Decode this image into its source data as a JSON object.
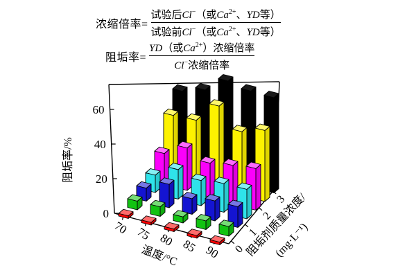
{
  "formulas": {
    "concentration_ratio": {
      "lhs": "浓缩倍率=",
      "numerator": "试验后<i>Cl</i><sup>−</sup>（或<i>Ca</i><sup>2+</sup>、<i>YD</i>等）",
      "denominator": "试验前<i>Cl</i><sup>−</sup>（或<i>Ca</i><sup>2+</sup>、<i>YD</i>等）"
    },
    "scale_inhibition_rate": {
      "lhs": "阻垢率=",
      "numerator": "<i>YD</i>（或<i>Ca</i><sup>2+</sup>）浓缩倍率",
      "denominator": "<i>Cl</i><sup>−</sup>浓缩倍率"
    }
  },
  "chart_data": {
    "type": "bar",
    "projection": "3d",
    "xlabel": "温度/°C",
    "ylabel": "阻垢率/%",
    "zlabel": "阻垢剂质量浓度/(mg·L⁻¹)",
    "zlabel_line1": "阻垢剂质量浓度/",
    "zlabel_line2": "(mg·L⁻¹)",
    "categories": [
      70,
      75,
      80,
      85,
      90
    ],
    "x_tick_labels": [
      "70",
      "75",
      "80",
      "85",
      "90"
    ],
    "y_ticks": [
      0,
      20,
      40,
      60
    ],
    "ylim": [
      0,
      74
    ],
    "z_tick_labels": [
      "0",
      "1",
      "2",
      "3"
    ],
    "z_concentrations": [
      0,
      0.5,
      1,
      1.5,
      2,
      2.5,
      3
    ],
    "grid": false,
    "legend": false,
    "series": [
      {
        "name": "0 mg·L⁻¹",
        "concentration": 0,
        "color": "#ff0000",
        "values": [
          1.5,
          1.5,
          1.5,
          1.5,
          1.5
        ]
      },
      {
        "name": "0.5 mg·L⁻¹",
        "concentration": 0.5,
        "color": "#12c312",
        "values": [
          5,
          5.5,
          3.5,
          5,
          5.5
        ]
      },
      {
        "name": "1 mg·L⁻¹",
        "concentration": 1,
        "color": "#1414d2",
        "values": [
          7.5,
          13.5,
          9,
          11.5,
          12
        ]
      },
      {
        "name": "1.5 mg·L⁻¹",
        "concentration": 1.5,
        "color": "#2fe3ea",
        "values": [
          10,
          17,
          14.5,
          16.5,
          17
        ]
      },
      {
        "name": "2 mg·L⁻¹",
        "concentration": 2,
        "color": "#fb00fb",
        "values": [
          17.5,
          24.5,
          19.5,
          22,
          24
        ]
      },
      {
        "name": "2.5 mg·L⁻¹",
        "concentration": 2.5,
        "color": "#fdf200",
        "values": [
          34.5,
          35.5,
          47.5,
          36.5,
          41
        ]
      },
      {
        "name": "3 mg·L⁻¹",
        "concentration": 3,
        "color": "#000000",
        "values": [
          43.5,
          48,
          57,
          55,
          55
        ]
      }
    ]
  }
}
